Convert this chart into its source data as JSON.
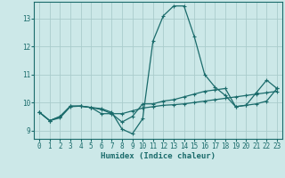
{
  "title": "",
  "xlabel": "Humidex (Indice chaleur)",
  "ylabel": "",
  "bg_color": "#cce8e8",
  "grid_color": "#aacccc",
  "line_color": "#1a6b6b",
  "xlim": [
    -0.5,
    23.5
  ],
  "ylim": [
    8.7,
    13.6
  ],
  "yticks": [
    9,
    10,
    11,
    12,
    13
  ],
  "xticks": [
    0,
    1,
    2,
    3,
    4,
    5,
    6,
    7,
    8,
    9,
    10,
    11,
    12,
    13,
    14,
    15,
    16,
    17,
    18,
    19,
    20,
    21,
    22,
    23
  ],
  "series": [
    [
      9.65,
      9.35,
      9.45,
      9.85,
      9.87,
      9.82,
      9.78,
      9.65,
      9.05,
      8.88,
      9.42,
      12.2,
      13.1,
      13.45,
      13.45,
      12.35,
      11.0,
      10.55,
      10.25,
      9.85,
      9.9,
      10.35,
      10.8,
      10.5
    ],
    [
      9.65,
      9.35,
      9.5,
      9.87,
      9.87,
      9.82,
      9.75,
      9.6,
      9.3,
      9.5,
      9.95,
      9.95,
      10.05,
      10.1,
      10.2,
      10.3,
      10.4,
      10.45,
      10.5,
      9.85,
      9.9,
      9.95,
      10.05,
      10.5
    ],
    [
      9.65,
      9.35,
      9.5,
      9.87,
      9.87,
      9.82,
      9.6,
      9.6,
      9.6,
      9.7,
      9.8,
      9.85,
      9.9,
      9.92,
      9.95,
      10.0,
      10.05,
      10.1,
      10.15,
      10.2,
      10.25,
      10.3,
      10.35,
      10.4
    ]
  ]
}
